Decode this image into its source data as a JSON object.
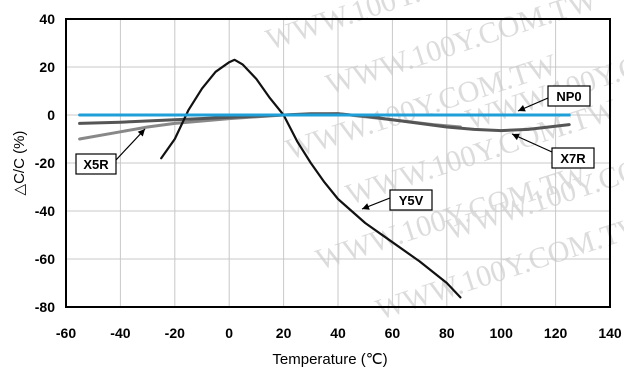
{
  "watermark": "WWW.100Y.COM.TW",
  "chart_data": {
    "type": "line",
    "title": "",
    "xlabel": "Temperature (℃)",
    "ylabel": "△C/C (%)",
    "xlim": [
      -60,
      140
    ],
    "ylim": [
      -80,
      40
    ],
    "x_ticks": [
      -60,
      -40,
      -20,
      0,
      20,
      40,
      60,
      80,
      100,
      120,
      140
    ],
    "y_ticks": [
      40,
      20,
      0,
      -20,
      -40,
      -60,
      -80
    ],
    "grid": true,
    "legend": "inline-callouts",
    "series": [
      {
        "name": "NP0",
        "color": "#1e9fd8",
        "x": [
          -55,
          -20,
          0,
          20,
          40,
          60,
          80,
          100,
          125
        ],
        "y": [
          0,
          0,
          0,
          0,
          0,
          0,
          0,
          0,
          0
        ]
      },
      {
        "name": "X7R",
        "color": "#555555",
        "x": [
          -55,
          -40,
          -20,
          0,
          20,
          30,
          40,
          50,
          60,
          70,
          80,
          90,
          100,
          110,
          125
        ],
        "y": [
          -3.5,
          -3,
          -2,
          -1,
          0,
          0.5,
          0.5,
          -0.5,
          -2,
          -3.5,
          -5,
          -6,
          -6.5,
          -6,
          -4
        ]
      },
      {
        "name": "X5R",
        "color": "#888888",
        "x": [
          -55,
          -40,
          -30,
          -20,
          0,
          20,
          40,
          60,
          75,
          85
        ],
        "y": [
          -10,
          -7,
          -5,
          -3.5,
          -1.5,
          0,
          0.5,
          -2,
          -4,
          -5
        ]
      },
      {
        "name": "Y5V",
        "color": "#111111",
        "x": [
          -25,
          -20,
          -15,
          -10,
          -5,
          0,
          2,
          5,
          10,
          15,
          20,
          25,
          30,
          35,
          40,
          50,
          60,
          70,
          80,
          85
        ],
        "y": [
          -18,
          -10,
          2,
          11,
          18,
          22,
          23,
          21,
          15,
          7,
          0,
          -11,
          -20,
          -28,
          -35,
          -45,
          -53,
          -61,
          -70,
          -76
        ]
      }
    ],
    "callouts": [
      {
        "series": "NP0",
        "text": "NP0"
      },
      {
        "series": "X7R",
        "text": "X7R"
      },
      {
        "series": "X5R",
        "text": "X5R"
      },
      {
        "series": "Y5V",
        "text": "Y5V"
      }
    ]
  }
}
